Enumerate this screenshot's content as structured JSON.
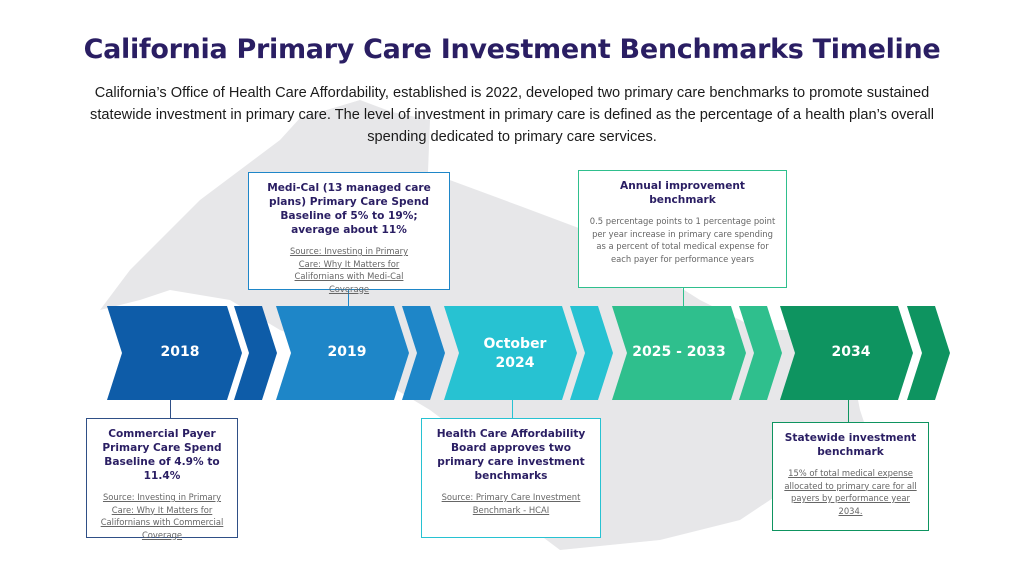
{
  "title": "California Primary Care Investment Benchmarks Timeline",
  "intro": "California’s Office of Health Care Affordability, established is 2022, developed two primary care benchmarks to promote sustained statewide investment in primary care. The level of investment in primary care is defined as the percentage of a health plan’s overall spending dedicated to primary care services.",
  "timeline": {
    "labels": [
      "2018",
      "2019",
      "October\n2024",
      "2025 - 2033",
      "2034"
    ],
    "colors": [
      "#0e5ca8",
      "#1e86c8",
      "#27c2d2",
      "#2fbf8d",
      "#0e9460"
    ]
  },
  "boxes": {
    "b2018": {
      "title": "Commercial Payer Primary Care Spend Baseline of 4.9% to 11.4%",
      "source": "Source: Investing in Primary Care: Why It Matters for Californians with Commercial Coverage"
    },
    "b2019": {
      "title": "Medi-Cal (13 managed care plans) Primary Care Spend Baseline of 5% to 19%; average about 11%",
      "source": "Source: Investing in Primary Care: Why It Matters for Californians with Medi-Cal Coverage"
    },
    "b2024": {
      "title": "Health Care Affordability Board approves two primary care investment benchmarks",
      "source": "Source: Primary Care Investment Benchmark - HCAI"
    },
    "b2025": {
      "title": "Annual improvement benchmark",
      "body": "0.5 percentage points to 1 percentage point per year increase in primary care spending as a percent of total medical expense for each payer for performance years"
    },
    "b2034": {
      "title": "Statewide investment benchmark",
      "body": "15% of total medical expense allocated to primary care for all payers by performance year 2034."
    }
  }
}
